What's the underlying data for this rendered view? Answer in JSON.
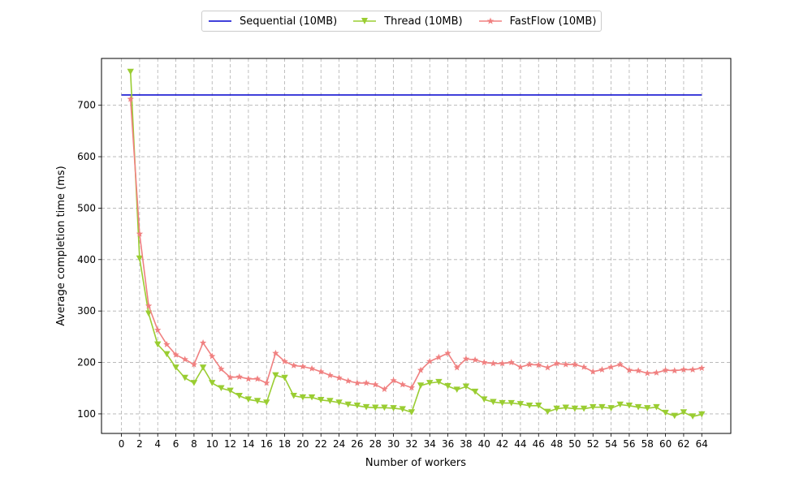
{
  "chart_data": {
    "type": "line",
    "title": "",
    "xlabel": "Number of workers",
    "ylabel": "Average completion time (ms)",
    "xlim": [
      -2.2,
      67.2
    ],
    "ylim": [
      62,
      791
    ],
    "x_ticks": [
      0,
      2,
      4,
      6,
      8,
      10,
      12,
      14,
      16,
      18,
      20,
      22,
      24,
      26,
      28,
      30,
      32,
      34,
      36,
      38,
      40,
      42,
      44,
      46,
      48,
      50,
      52,
      54,
      56,
      58,
      60,
      62,
      64
    ],
    "y_ticks": [
      100,
      200,
      300,
      400,
      500,
      600,
      700
    ],
    "grid": true,
    "legend_position": "top-center",
    "series": [
      {
        "name": "Sequential (10MB)",
        "color": "#0000cd",
        "marker": "none",
        "x": [
          0,
          64
        ],
        "values": [
          720,
          720
        ]
      },
      {
        "name": "Thread (10MB)",
        "color": "#9acd32",
        "marker": "triangle-down",
        "x": [
          1,
          2,
          3,
          4,
          5,
          6,
          7,
          8,
          9,
          10,
          11,
          12,
          13,
          14,
          15,
          16,
          17,
          18,
          19,
          20,
          21,
          22,
          23,
          24,
          25,
          26,
          27,
          28,
          29,
          30,
          31,
          32,
          33,
          34,
          35,
          36,
          37,
          38,
          39,
          40,
          41,
          42,
          43,
          44,
          45,
          46,
          47,
          48,
          49,
          50,
          51,
          52,
          53,
          54,
          55,
          56,
          57,
          58,
          59,
          60,
          61,
          62,
          63,
          64
        ],
        "values": [
          765,
          402,
          295,
          235,
          216,
          190,
          170,
          160,
          190,
          160,
          150,
          145,
          135,
          128,
          125,
          122,
          175,
          170,
          135,
          132,
          132,
          127,
          125,
          122,
          118,
          116,
          113,
          112,
          112,
          111,
          109,
          103,
          155,
          160,
          162,
          154,
          147,
          153,
          143,
          128,
          123,
          121,
          121,
          119,
          116,
          116,
          104,
          110,
          112,
          110,
          110,
          113,
          113,
          111,
          118,
          116,
          113,
          111,
          113,
          102,
          96,
          103,
          95,
          99
        ]
      },
      {
        "name": "FastFlow (10MB)",
        "color": "#f08080",
        "marker": "star",
        "x": [
          1,
          2,
          3,
          4,
          5,
          6,
          7,
          8,
          9,
          10,
          11,
          12,
          13,
          14,
          15,
          16,
          17,
          18,
          19,
          20,
          21,
          22,
          23,
          24,
          25,
          26,
          27,
          28,
          29,
          30,
          31,
          32,
          33,
          34,
          35,
          36,
          37,
          38,
          39,
          40,
          41,
          42,
          43,
          44,
          45,
          46,
          47,
          48,
          49,
          50,
          51,
          52,
          53,
          54,
          55,
          56,
          57,
          58,
          59,
          60,
          61,
          62,
          63,
          64
        ],
        "values": [
          712,
          450,
          310,
          263,
          235,
          215,
          206,
          196,
          238,
          212,
          187,
          171,
          172,
          168,
          168,
          160,
          218,
          202,
          194,
          192,
          188,
          182,
          175,
          170,
          164,
          160,
          160,
          157,
          148,
          165,
          157,
          151,
          185,
          202,
          210,
          218,
          190,
          207,
          205,
          200,
          198,
          198,
          200,
          191,
          196,
          195,
          190,
          198,
          196,
          196,
          191,
          182,
          186,
          191,
          196,
          185,
          184,
          179,
          180,
          185,
          184,
          186,
          186,
          189
        ]
      }
    ]
  }
}
